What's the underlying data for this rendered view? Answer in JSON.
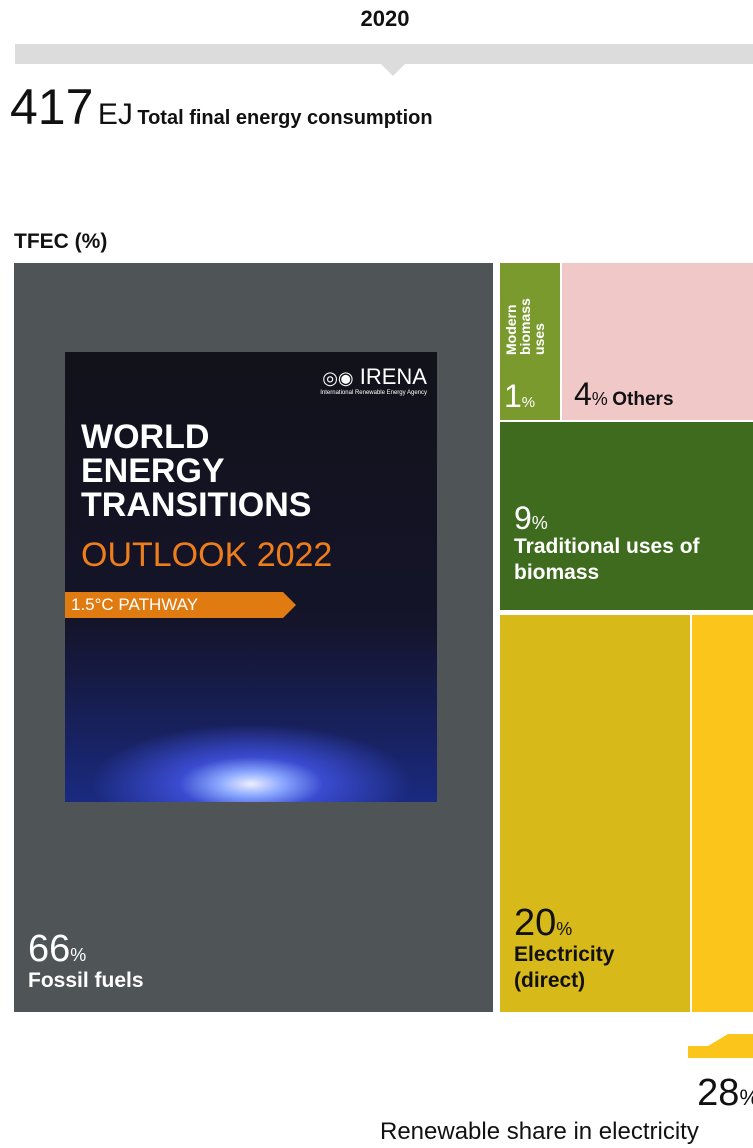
{
  "header": {
    "year": "2020",
    "total_value": "417",
    "total_unit": "EJ",
    "total_label": "Total final energy consumption"
  },
  "section_label": "TFEC (%)",
  "unit": "%",
  "tiles": [
    {
      "value": "66",
      "label": "Fossil fuels"
    },
    {
      "value": "1",
      "label": "Modern biomass uses"
    },
    {
      "value": "4",
      "label": "Others"
    },
    {
      "value": "9",
      "label": "Traditional uses of biomass"
    },
    {
      "value": "20",
      "label": "Electricity (direct)"
    }
  ],
  "cover": {
    "brand": "IRENA",
    "agency": "International Renewable Energy Agency",
    "title_lines": [
      "WORLD",
      "ENERGY",
      "TRANSITIONS"
    ],
    "subtitle": "OUTLOOK 2022",
    "pathway": "1.5°C PATHWAY"
  },
  "renewable_share": {
    "value": "28",
    "label": "Renewable share in electricity"
  }
}
